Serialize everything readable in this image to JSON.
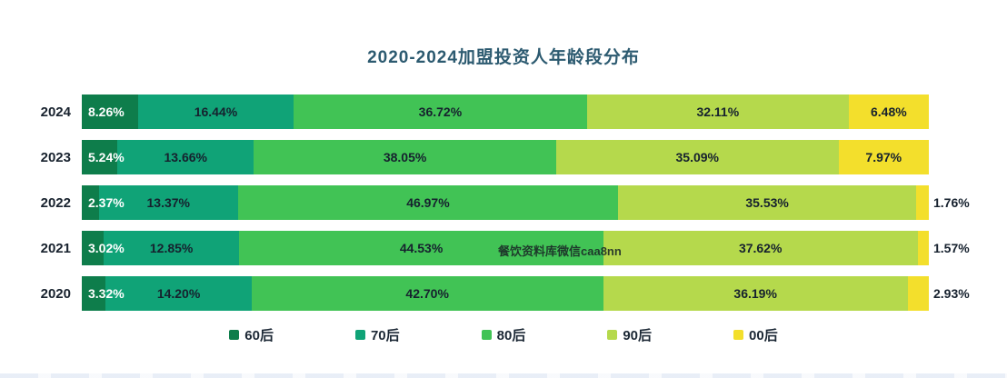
{
  "title": "2020-2024加盟投资人年龄段分布",
  "watermark": "餐饮资料库微信caa8nn",
  "colors": {
    "title_text": "#2c5a70",
    "axis_text": "#18222e",
    "label_inside_first": "#ffffff",
    "label_dark": "#16212e"
  },
  "chart_data": {
    "type": "bar",
    "variant": "stacked-100",
    "orientation": "horizontal",
    "title": "2020-2024加盟投资人年龄段分布",
    "unit": "%",
    "value_labels": true,
    "legend_position": "bottom",
    "grid": false,
    "categories": [
      "2024",
      "2023",
      "2022",
      "2021",
      "2020"
    ],
    "series": [
      {
        "name": "60后",
        "color": "#0e7d4b",
        "values": [
          8.26,
          5.24,
          2.37,
          3.02,
          3.32
        ]
      },
      {
        "name": "70后",
        "color": "#10a377",
        "values": [
          16.44,
          13.66,
          13.37,
          12.85,
          14.2
        ]
      },
      {
        "name": "80后",
        "color": "#41c355",
        "values": [
          36.72,
          38.05,
          46.97,
          44.53,
          42.7
        ]
      },
      {
        "name": "90后",
        "color": "#b5d94c",
        "values": [
          32.11,
          35.09,
          35.53,
          37.62,
          36.19
        ]
      },
      {
        "name": "00后",
        "color": "#f3df2c",
        "values": [
          6.48,
          7.97,
          1.76,
          1.57,
          2.93
        ]
      }
    ],
    "outside_label_threshold": 3
  }
}
